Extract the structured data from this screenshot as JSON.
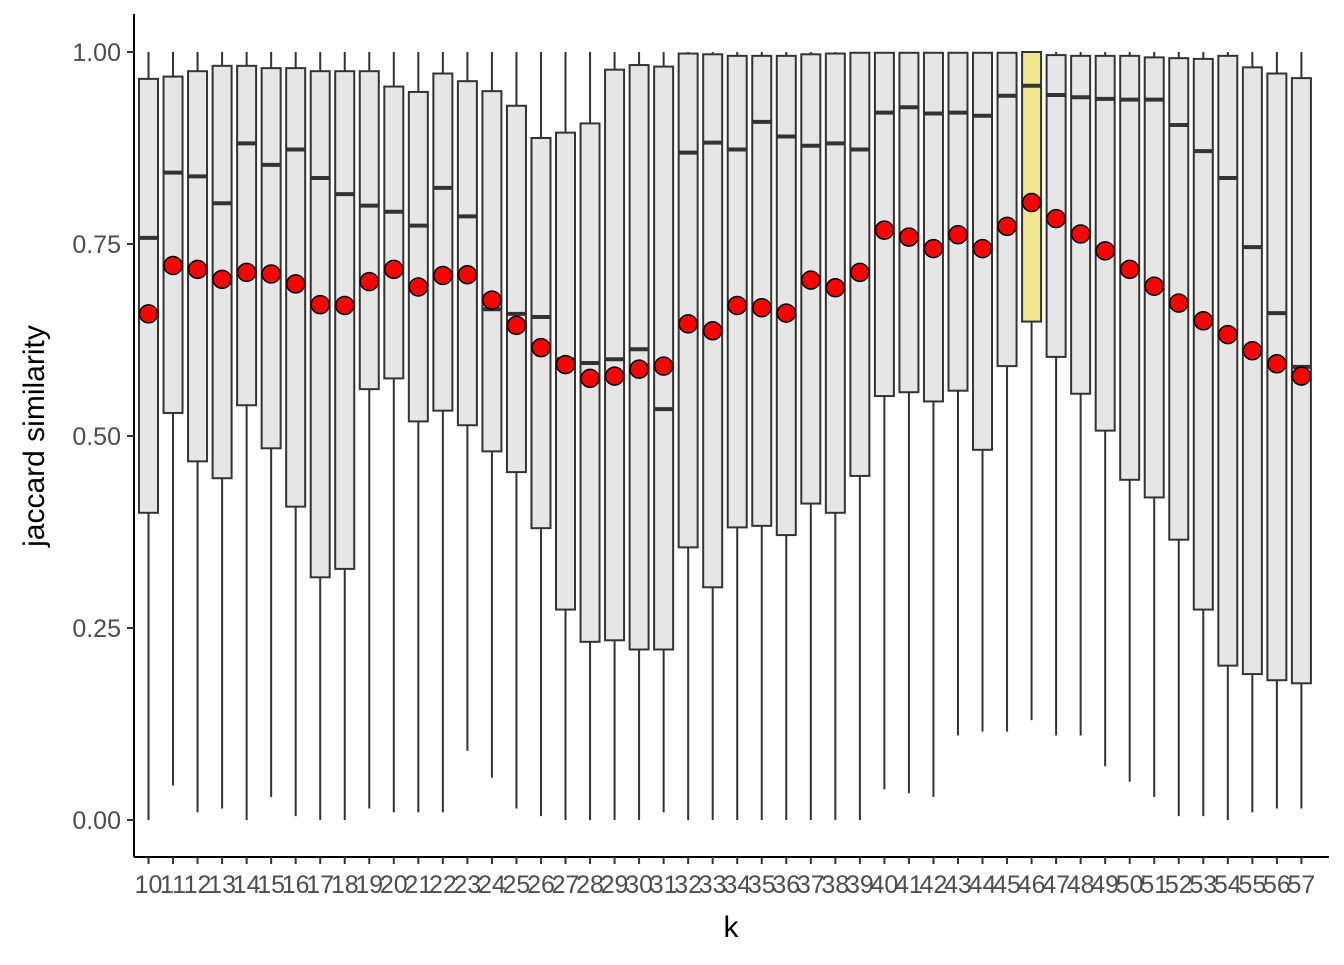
{
  "chart_data": {
    "type": "boxplot",
    "title": "",
    "xlabel": "k",
    "ylabel": "jaccard similarity",
    "ylim": [
      -0.05,
      1.05
    ],
    "yticks": [
      0.0,
      0.25,
      0.5,
      0.75,
      1.0
    ],
    "ytick_labels": [
      "0.00",
      "0.25",
      "0.50",
      "0.75",
      "1.00"
    ],
    "grid": false,
    "legend": "none",
    "colors": {
      "box_fill": "#e6e6e6",
      "highlight_fill": "#f0e68c",
      "stroke": "#333333",
      "mean_point": "#ff0000"
    },
    "highlight_category": "46",
    "categories": [
      "10",
      "11",
      "12",
      "13",
      "14",
      "15",
      "16",
      "17",
      "18",
      "19",
      "20",
      "21",
      "22",
      "23",
      "24",
      "25",
      "26",
      "27",
      "28",
      "29",
      "30",
      "31",
      "32",
      "33",
      "34",
      "35",
      "36",
      "37",
      "38",
      "39",
      "40",
      "41",
      "42",
      "43",
      "44",
      "45",
      "46",
      "47",
      "48",
      "49",
      "50",
      "51",
      "52",
      "53",
      "54",
      "55",
      "56",
      "57"
    ],
    "whisker_low": [
      0.0,
      0.045,
      0.01,
      0.015,
      0.0,
      0.03,
      0.005,
      0.0,
      0.0,
      0.015,
      0.01,
      0.01,
      0.01,
      0.09,
      0.055,
      0.015,
      0.005,
      0.0,
      0.0,
      0.0,
      0.0,
      0.01,
      0.0,
      0.0,
      0.0,
      0.0,
      0.0,
      0.0,
      0.0,
      0.0,
      0.04,
      0.035,
      0.03,
      0.11,
      0.115,
      0.115,
      0.13,
      0.11,
      0.11,
      0.07,
      0.05,
      0.03,
      0.005,
      0.005,
      0.0,
      0.01,
      0.015,
      0.015
    ],
    "q1": [
      0.4,
      0.53,
      0.467,
      0.445,
      0.54,
      0.484,
      0.408,
      0.316,
      0.327,
      0.561,
      0.575,
      0.519,
      0.533,
      0.514,
      0.48,
      0.453,
      0.38,
      0.274,
      0.232,
      0.234,
      0.222,
      0.222,
      0.355,
      0.303,
      0.381,
      0.383,
      0.371,
      0.412,
      0.4,
      0.448,
      0.552,
      0.557,
      0.545,
      0.559,
      0.482,
      0.591,
      0.649,
      0.603,
      0.555,
      0.507,
      0.443,
      0.42,
      0.365,
      0.274,
      0.201,
      0.19,
      0.182,
      0.178
    ],
    "median": [
      0.758,
      0.843,
      0.838,
      0.803,
      0.881,
      0.853,
      0.873,
      0.836,
      0.815,
      0.8,
      0.792,
      0.774,
      0.823,
      0.786,
      0.665,
      0.659,
      0.655,
      0.6,
      0.595,
      0.6,
      0.613,
      0.535,
      0.869,
      0.882,
      0.873,
      0.909,
      0.89,
      0.878,
      0.881,
      0.873,
      0.921,
      0.928,
      0.92,
      0.921,
      0.917,
      0.943,
      0.956,
      0.944,
      0.941,
      0.939,
      0.938,
      0.938,
      0.905,
      0.871,
      0.836,
      0.746,
      0.66,
      0.59
    ],
    "q3": [
      0.965,
      0.968,
      0.975,
      0.982,
      0.982,
      0.979,
      0.979,
      0.975,
      0.975,
      0.975,
      0.955,
      0.948,
      0.972,
      0.962,
      0.949,
      0.93,
      0.888,
      0.895,
      0.907,
      0.977,
      0.983,
      0.981,
      0.998,
      0.997,
      0.995,
      0.995,
      0.995,
      0.997,
      0.998,
      0.999,
      0.999,
      0.999,
      0.999,
      0.999,
      0.999,
      0.999,
      1.0,
      0.996,
      0.995,
      0.995,
      0.995,
      0.993,
      0.992,
      0.991,
      0.995,
      0.98,
      0.972,
      0.966
    ],
    "whisker_high": [
      1.0,
      1.0,
      1.0,
      1.0,
      1.0,
      1.0,
      1.0,
      1.0,
      1.0,
      1.0,
      1.0,
      1.0,
      1.0,
      1.0,
      1.0,
      1.0,
      1.0,
      1.0,
      1.0,
      1.0,
      1.0,
      1.0,
      1.0,
      1.0,
      1.0,
      1.0,
      1.0,
      1.0,
      1.0,
      1.0,
      1.0,
      1.0,
      1.0,
      1.0,
      1.0,
      1.0,
      1.0,
      1.0,
      1.0,
      1.0,
      1.0,
      1.0,
      1.0,
      1.0,
      1.0,
      1.0,
      1.0,
      1.0
    ],
    "mean": [
      0.659,
      0.722,
      0.717,
      0.704,
      0.713,
      0.711,
      0.698,
      0.671,
      0.67,
      0.701,
      0.717,
      0.694,
      0.709,
      0.71,
      0.677,
      0.644,
      0.615,
      0.593,
      0.575,
      0.578,
      0.587,
      0.591,
      0.646,
      0.637,
      0.67,
      0.667,
      0.66,
      0.703,
      0.693,
      0.713,
      0.768,
      0.759,
      0.744,
      0.762,
      0.744,
      0.773,
      0.804,
      0.783,
      0.763,
      0.741,
      0.717,
      0.695,
      0.673,
      0.65,
      0.632,
      0.611,
      0.594,
      0.578
    ]
  }
}
